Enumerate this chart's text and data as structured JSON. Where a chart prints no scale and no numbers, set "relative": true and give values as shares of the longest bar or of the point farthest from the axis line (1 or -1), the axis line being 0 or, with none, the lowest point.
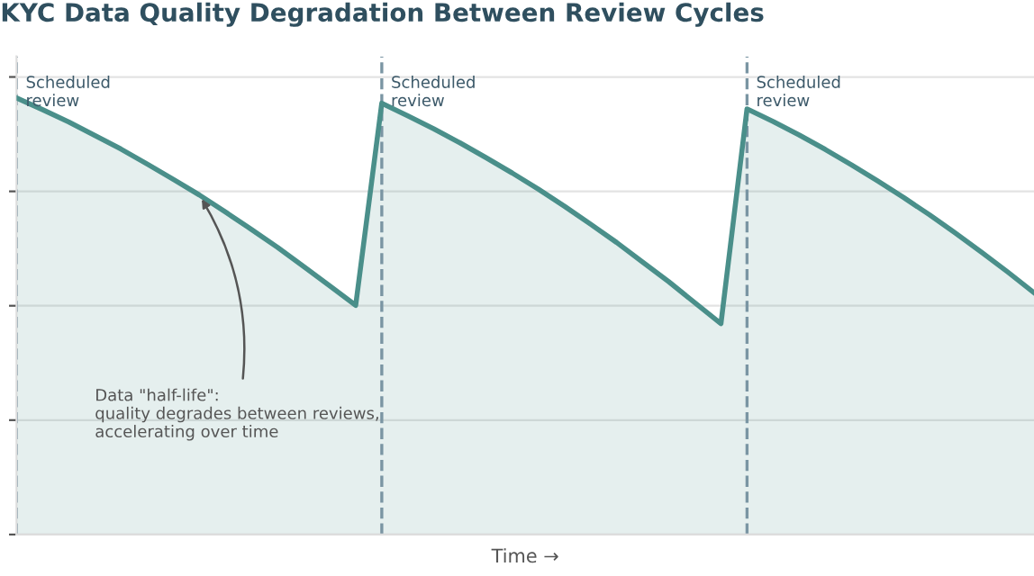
{
  "chart_data": {
    "type": "area",
    "title": "KYC Data Quality Degradation Between Review Cycles",
    "xlabel": "Time →",
    "relative": true,
    "categories": [
      null,
      null,
      null,
      null,
      null,
      null,
      null,
      null,
      null,
      null,
      null,
      null,
      null,
      null,
      null,
      null,
      null,
      null,
      null,
      null,
      null,
      null,
      null,
      null,
      null,
      null,
      null,
      null,
      null,
      null,
      null,
      null,
      null,
      null,
      null,
      null,
      null,
      null,
      null,
      null
    ],
    "series": [
      {
        "color": "#4a8f8a",
        "values": [
          1.0,
          0.973,
          0.945,
          0.914,
          0.883,
          0.849,
          0.814,
          0.778,
          0.739,
          0.699,
          0.658,
          0.614,
          0.57,
          0.525,
          0.988,
          0.959,
          0.929,
          0.897,
          0.863,
          0.828,
          0.791,
          0.752,
          0.711,
          0.669,
          0.624,
          0.579,
          0.531,
          0.483,
          0.975,
          0.946,
          0.915,
          0.882,
          0.847,
          0.81,
          0.772,
          0.732,
          0.69,
          0.646,
          0.601,
          0.554
        ]
      }
    ],
    "annotations": [
      "Scheduled\nreview",
      "Scheduled\nreview",
      "Scheduled\nreview",
      "Data \"half-life\":\nquality degrades between reviews,\naccelerating over time"
    ],
    "grid": "y"
  }
}
